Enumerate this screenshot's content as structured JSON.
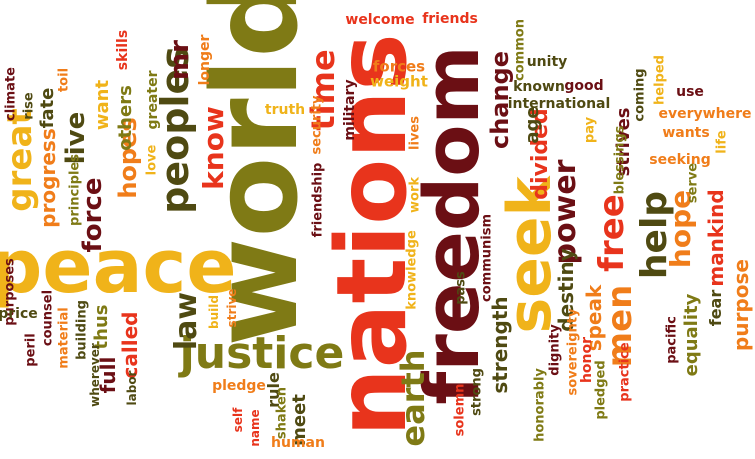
{
  "palette": {
    "maroon": "#6b0f14",
    "red": "#e8341c",
    "orange": "#f07d1a",
    "gold": "#f0b31a",
    "olive": "#7f7a15",
    "darkolive": "#4f4a12"
  },
  "words": [
    {
      "id": "world",
      "text": "world"
    },
    {
      "id": "nations",
      "text": "nations"
    },
    {
      "id": "freedom",
      "text": "freedom"
    },
    {
      "id": "peace",
      "text": "peace"
    },
    {
      "id": "seek",
      "text": "seek"
    },
    {
      "id": "justice",
      "text": "justice"
    },
    {
      "id": "peoples",
      "text": "peoples"
    },
    {
      "id": "earth",
      "text": "earth"
    },
    {
      "id": "help",
      "text": "help"
    },
    {
      "id": "free",
      "text": "free"
    },
    {
      "id": "men",
      "text": "men"
    },
    {
      "id": "power",
      "text": "power"
    },
    {
      "id": "great",
      "text": "great"
    },
    {
      "id": "time",
      "text": "time"
    },
    {
      "id": "law",
      "text": "law"
    },
    {
      "id": "know",
      "text": "know"
    },
    {
      "id": "hope",
      "text": "hope"
    },
    {
      "id": "force",
      "text": "force"
    },
    {
      "id": "live",
      "text": "live"
    },
    {
      "id": "mr",
      "text": "mr"
    },
    {
      "id": "change",
      "text": "change"
    },
    {
      "id": "hopes",
      "text": "hopes"
    },
    {
      "id": "divided",
      "text": "divided"
    },
    {
      "id": "destiny",
      "text": "destiny"
    },
    {
      "id": "strength",
      "text": "strength"
    },
    {
      "id": "speak",
      "text": "speak"
    },
    {
      "id": "mankind",
      "text": "mankind"
    },
    {
      "id": "purpose",
      "text": "purpose"
    },
    {
      "id": "progress",
      "text": "progress"
    },
    {
      "id": "fate",
      "text": "fate"
    },
    {
      "id": "others",
      "text": "others"
    },
    {
      "id": "want",
      "text": "want"
    },
    {
      "id": "full",
      "text": "full"
    },
    {
      "id": "called",
      "text": "called"
    },
    {
      "id": "thus",
      "text": "thus"
    },
    {
      "id": "age",
      "text": "age"
    },
    {
      "id": "meet",
      "text": "meet"
    },
    {
      "id": "rule",
      "text": "rule"
    },
    {
      "id": "strives",
      "text": "strives"
    },
    {
      "id": "equality",
      "text": "equality"
    },
    {
      "id": "fear",
      "text": "fear"
    },
    {
      "id": "honor",
      "text": "honor"
    },
    {
      "id": "skills",
      "text": "skills"
    },
    {
      "id": "greater",
      "text": "greater"
    },
    {
      "id": "longer",
      "text": "longer"
    },
    {
      "id": "military",
      "text": "military"
    },
    {
      "id": "forces",
      "text": "forces"
    },
    {
      "id": "weight",
      "text": "weight"
    },
    {
      "id": "welcome",
      "text": "welcome"
    },
    {
      "id": "friends",
      "text": "friends"
    },
    {
      "id": "common",
      "text": "common"
    },
    {
      "id": "unity",
      "text": "unity"
    },
    {
      "id": "known",
      "text": "known"
    },
    {
      "id": "good",
      "text": "good"
    },
    {
      "id": "international",
      "text": "international"
    },
    {
      "id": "coming",
      "text": "coming"
    },
    {
      "id": "helped",
      "text": "helped"
    },
    {
      "id": "use",
      "text": "use"
    },
    {
      "id": "everywhere",
      "text": "everywhere"
    },
    {
      "id": "wants",
      "text": "wants"
    },
    {
      "id": "life",
      "text": "life"
    },
    {
      "id": "blessings",
      "text": "blessings"
    },
    {
      "id": "pay",
      "text": "pay"
    },
    {
      "id": "seeking",
      "text": "seeking"
    },
    {
      "id": "serve",
      "text": "serve"
    },
    {
      "id": "climate",
      "text": "climate"
    },
    {
      "id": "rise",
      "text": "rise"
    },
    {
      "id": "toil",
      "text": "toil"
    },
    {
      "id": "principles",
      "text": "principles"
    },
    {
      "id": "love",
      "text": "love"
    },
    {
      "id": "truth",
      "text": "truth"
    },
    {
      "id": "security",
      "text": "security"
    },
    {
      "id": "lives",
      "text": "lives"
    },
    {
      "id": "friendship",
      "text": "friendship"
    },
    {
      "id": "work",
      "text": "work"
    },
    {
      "id": "communism",
      "text": "communism"
    },
    {
      "id": "knowledge",
      "text": "knowledge"
    },
    {
      "id": "pass",
      "text": "pass"
    },
    {
      "id": "dignity",
      "text": "dignity"
    },
    {
      "id": "sovereignty",
      "text": "sovereignty"
    },
    {
      "id": "pledged",
      "text": "pledged"
    },
    {
      "id": "practice",
      "text": "practice"
    },
    {
      "id": "pacific",
      "text": "pacific"
    },
    {
      "id": "purposes",
      "text": "purposes"
    },
    {
      "id": "price",
      "text": "price"
    },
    {
      "id": "counsel",
      "text": "counsel"
    },
    {
      "id": "material",
      "text": "material"
    },
    {
      "id": "building",
      "text": "building"
    },
    {
      "id": "peril",
      "text": "peril"
    },
    {
      "id": "wherever",
      "text": "wherever"
    },
    {
      "id": "labor",
      "text": "labor"
    },
    {
      "id": "strive",
      "text": "strive"
    },
    {
      "id": "build",
      "text": "build"
    },
    {
      "id": "shaken",
      "text": "shaken"
    },
    {
      "id": "pledge",
      "text": "pledge"
    },
    {
      "id": "self",
      "text": "self"
    },
    {
      "id": "name",
      "text": "name"
    },
    {
      "id": "human",
      "text": "human"
    },
    {
      "id": "solemn",
      "text": "solemn"
    },
    {
      "id": "strong",
      "text": "strong"
    },
    {
      "id": "honorably",
      "text": "honorably"
    }
  ]
}
